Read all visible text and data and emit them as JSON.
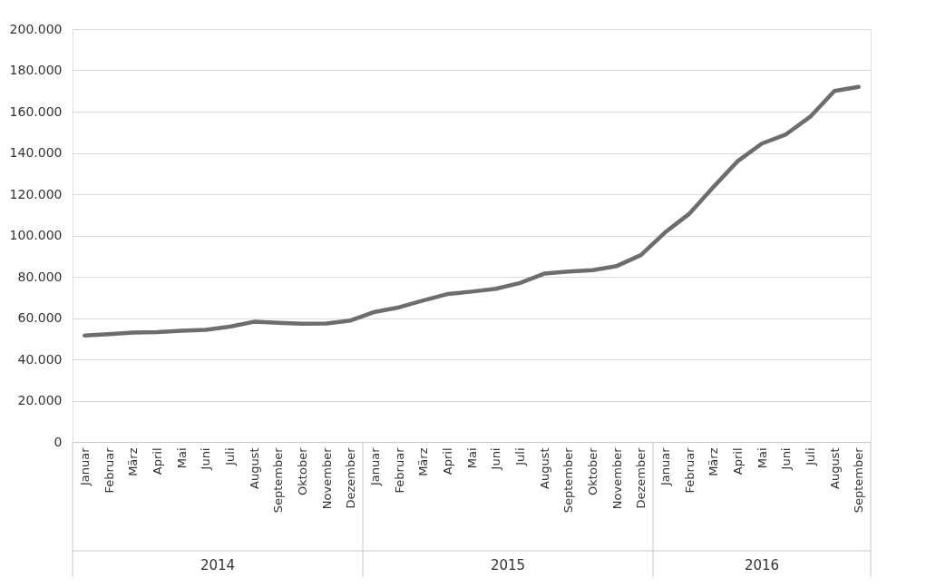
{
  "chart_data": {
    "type": "line",
    "categories": [
      "Januar",
      "Februar",
      "März",
      "April",
      "Mai",
      "Juni",
      "Juli",
      "August",
      "September",
      "Oktober",
      "November",
      "Dezember",
      "Januar",
      "Februar",
      "März",
      "April",
      "Mai",
      "Juni",
      "Juli",
      "August",
      "September",
      "Oktober",
      "November",
      "Dezember",
      "Januar",
      "Februar",
      "März",
      "April",
      "Mai",
      "Juni",
      "Juli",
      "August",
      "September"
    ],
    "series": [
      {
        "color": "#6d6d6d",
        "values": [
          51500,
          52200,
          53000,
          53200,
          53800,
          54300,
          55800,
          58200,
          57700,
          57200,
          57400,
          58800,
          63000,
          65200,
          68500,
          71600,
          72800,
          74200,
          77000,
          81500,
          82500,
          83200,
          85200,
          90500,
          101500,
          110500,
          123500,
          136000,
          144500,
          149000,
          157500,
          170000,
          172000
        ]
      }
    ],
    "ylim": [
      0,
      200000
    ],
    "yticks": [
      0,
      {
        "value": 20000,
        "label": "20.000"
      },
      {
        "value": 40000,
        "label": "40.000"
      },
      {
        "value": 60000,
        "label": "60.000"
      },
      {
        "value": 80000,
        "label": "80.000"
      },
      {
        "value": 100000,
        "label": "100.000"
      },
      {
        "value": 120000,
        "label": "120.000"
      },
      {
        "value": 140000,
        "label": "140.000"
      },
      {
        "value": 160000,
        "label": "160.000"
      },
      {
        "value": 180000,
        "label": "180.000"
      },
      {
        "value": 200000,
        "label": "200.000"
      }
    ],
    "annotations": [
      "2014",
      "2015",
      "2016"
    ],
    "grid": "y",
    "legend": false,
    "marker": "none",
    "line_style": "solid"
  }
}
